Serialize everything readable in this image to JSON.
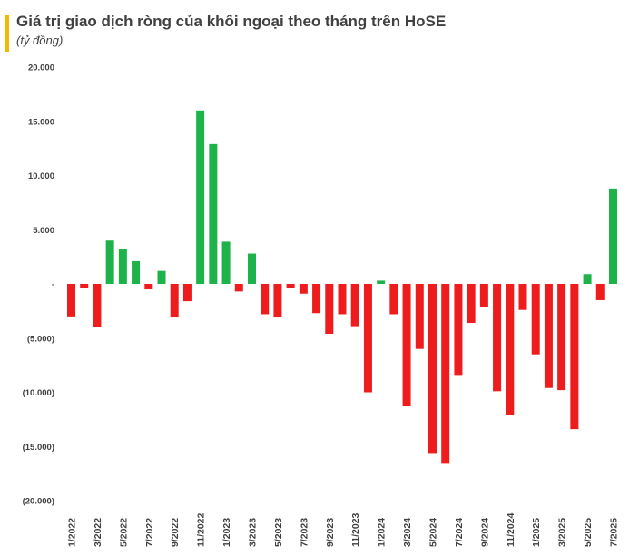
{
  "header": {
    "accent_color": "#f5b800"
  },
  "chart_data": {
    "type": "bar",
    "title": "Giá trị giao dịch ròng của khối ngoại theo tháng trên HoSE",
    "subtitle": "(tỷ đồng)",
    "xlabel": "",
    "ylabel": "",
    "ylim": [
      -20000,
      20000
    ],
    "yticks": [
      20000,
      15000,
      10000,
      5000,
      0,
      -5000,
      -10000,
      -15000,
      -20000
    ],
    "ytick_labels": [
      "20.000",
      "15.000",
      "10.000",
      "5.000",
      "-",
      "(5.000)",
      "(10.000)",
      "(15.000)",
      "(20.000)"
    ],
    "positive_color": "#1db34a",
    "negative_color": "#ee1c1c",
    "categories": [
      "1/2022",
      "2/2022",
      "3/2022",
      "4/2022",
      "5/2022",
      "6/2022",
      "7/2022",
      "8/2022",
      "9/2022",
      "10/2022",
      "11/2022",
      "12/2022",
      "1/2023",
      "2/2023",
      "3/2023",
      "4/2023",
      "5/2023",
      "6/2023",
      "7/2023",
      "8/2023",
      "9/2023",
      "10/2023",
      "11/2023",
      "12/2023",
      "1/2024",
      "2/2024",
      "3/2024",
      "4/2024",
      "5/2024",
      "6/2024",
      "7/2024",
      "8/2024",
      "9/2024",
      "10/2024",
      "11/2024",
      "12/2024",
      "1/2025",
      "2/2025",
      "3/2025",
      "4/2025",
      "5/2025",
      "6/2025",
      "7/2025"
    ],
    "x_tick_labels_shown": [
      "1/2022",
      "3/2022",
      "5/2022",
      "7/2022",
      "9/2022",
      "11/2022",
      "1/2023",
      "3/2023",
      "5/2023",
      "7/2023",
      "9/2023",
      "11/2023",
      "1/2024",
      "3/2024",
      "5/2024",
      "7/2024",
      "9/2024",
      "11/2024",
      "1/2025",
      "3/2025",
      "5/2025",
      "7/2025"
    ],
    "values": [
      -3000,
      -400,
      -4000,
      4000,
      3200,
      2100,
      -500,
      1200,
      -3100,
      -1600,
      16000,
      12900,
      3900,
      -700,
      2800,
      -2800,
      -3100,
      -400,
      -900,
      -2700,
      -4600,
      -2800,
      -3900,
      -10000,
      300,
      -2800,
      -11300,
      -6000,
      -15600,
      -16600,
      -8400,
      -3600,
      -2100,
      -9900,
      -12100,
      -2400,
      -6500,
      -9600,
      -9800,
      -13400,
      900,
      -1500,
      8800
    ]
  }
}
